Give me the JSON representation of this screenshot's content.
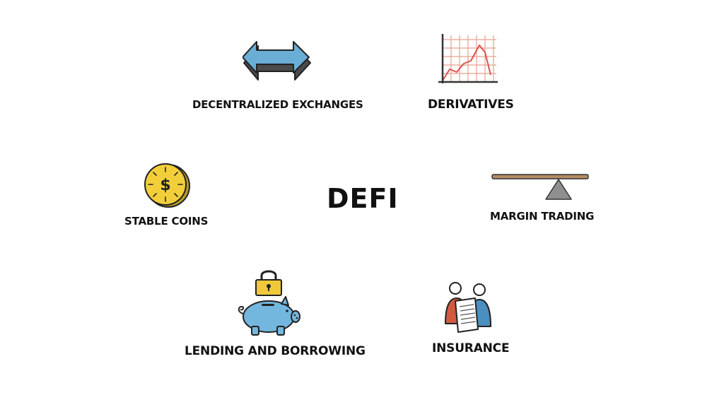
{
  "title": "DEFI",
  "items": {
    "decentralized_exchanges": "DECENTRALIZED EXCHANGES",
    "derivatives": "DERIVATIVES",
    "stable_coins": "STABLE COINS",
    "margin_trading": "MARGIN TRADING",
    "lending_borrowing": "LENDING AND BORROWING",
    "insurance": "INSURANCE"
  },
  "icons": {
    "exchange": "double-arrow-icon",
    "derivatives": "line-chart-icon",
    "stable_coins": "dollar-coin-icon",
    "margin_trading": "seesaw-balance-icon",
    "lending": "piggy-bank-lock-icon",
    "insurance": "people-contract-icon"
  },
  "colors": {
    "arrow_blue": "#6aaed6",
    "coin_yellow": "#f2cf3a",
    "piggy_blue": "#73b7de",
    "lock_yellow": "#f0c93a",
    "chart_red": "#d9534f",
    "person_red": "#d45a3f",
    "person_blue": "#4a8fbf",
    "plank_brown": "#b58a63",
    "fulcrum_gray": "#8f8f8f"
  }
}
